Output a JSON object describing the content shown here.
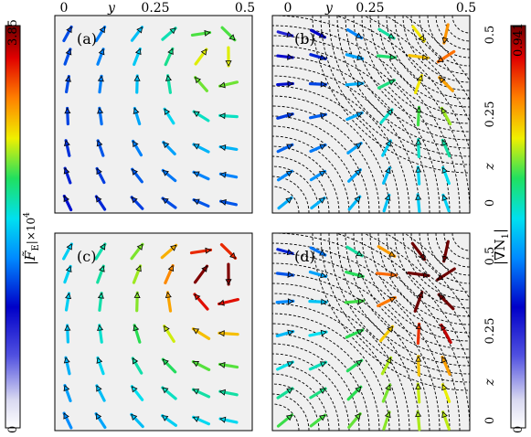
{
  "chart_data": [
    {
      "type": "quiver",
      "panel": "(a)",
      "top_axis": {
        "label": "y",
        "tick_labels": [
          "0",
          "0.25",
          "0.5"
        ],
        "range": [
          0,
          0.5
        ]
      },
      "grid_y": [
        0,
        0.1,
        0.2,
        0.3,
        0.4,
        0.5
      ],
      "grid_z": [
        0,
        0.1,
        0.2,
        0.3,
        0.4,
        0.5
      ],
      "magnitude_range": [
        0,
        3.85
      ],
      "contours": false
    },
    {
      "type": "quiver",
      "panel": "(b)",
      "top_axis": {
        "label": "y",
        "tick_labels": [
          "0",
          "0.25",
          "0.5"
        ],
        "range": [
          0,
          0.5
        ]
      },
      "right_axis": {
        "label": "z",
        "tick_labels": [
          "0",
          "0.25",
          "0.5"
        ],
        "range": [
          0,
          0.5
        ]
      },
      "magnitude_range": [
        0,
        0.941
      ],
      "contours": true
    },
    {
      "type": "quiver",
      "panel": "(c)",
      "magnitude_range": [
        0,
        3.85
      ],
      "contours": false
    },
    {
      "type": "quiver",
      "panel": "(d)",
      "right_axis": {
        "label": "z",
        "tick_labels": [
          "0",
          "0.25",
          "0.5"
        ],
        "range": [
          0,
          0.5
        ]
      },
      "magnitude_range": [
        0,
        0.941
      ],
      "contours": true
    }
  ],
  "left_colorbar": {
    "label_main": "|F̃",
    "label_sub": "E",
    "label_scale": "|×10",
    "label_exp": "4",
    "max": "3.85",
    "min": "0"
  },
  "right_colorbar": {
    "label_main": "|∇N",
    "label_sub": "1",
    "label_end": "|",
    "max": "0.941",
    "min": "0"
  }
}
